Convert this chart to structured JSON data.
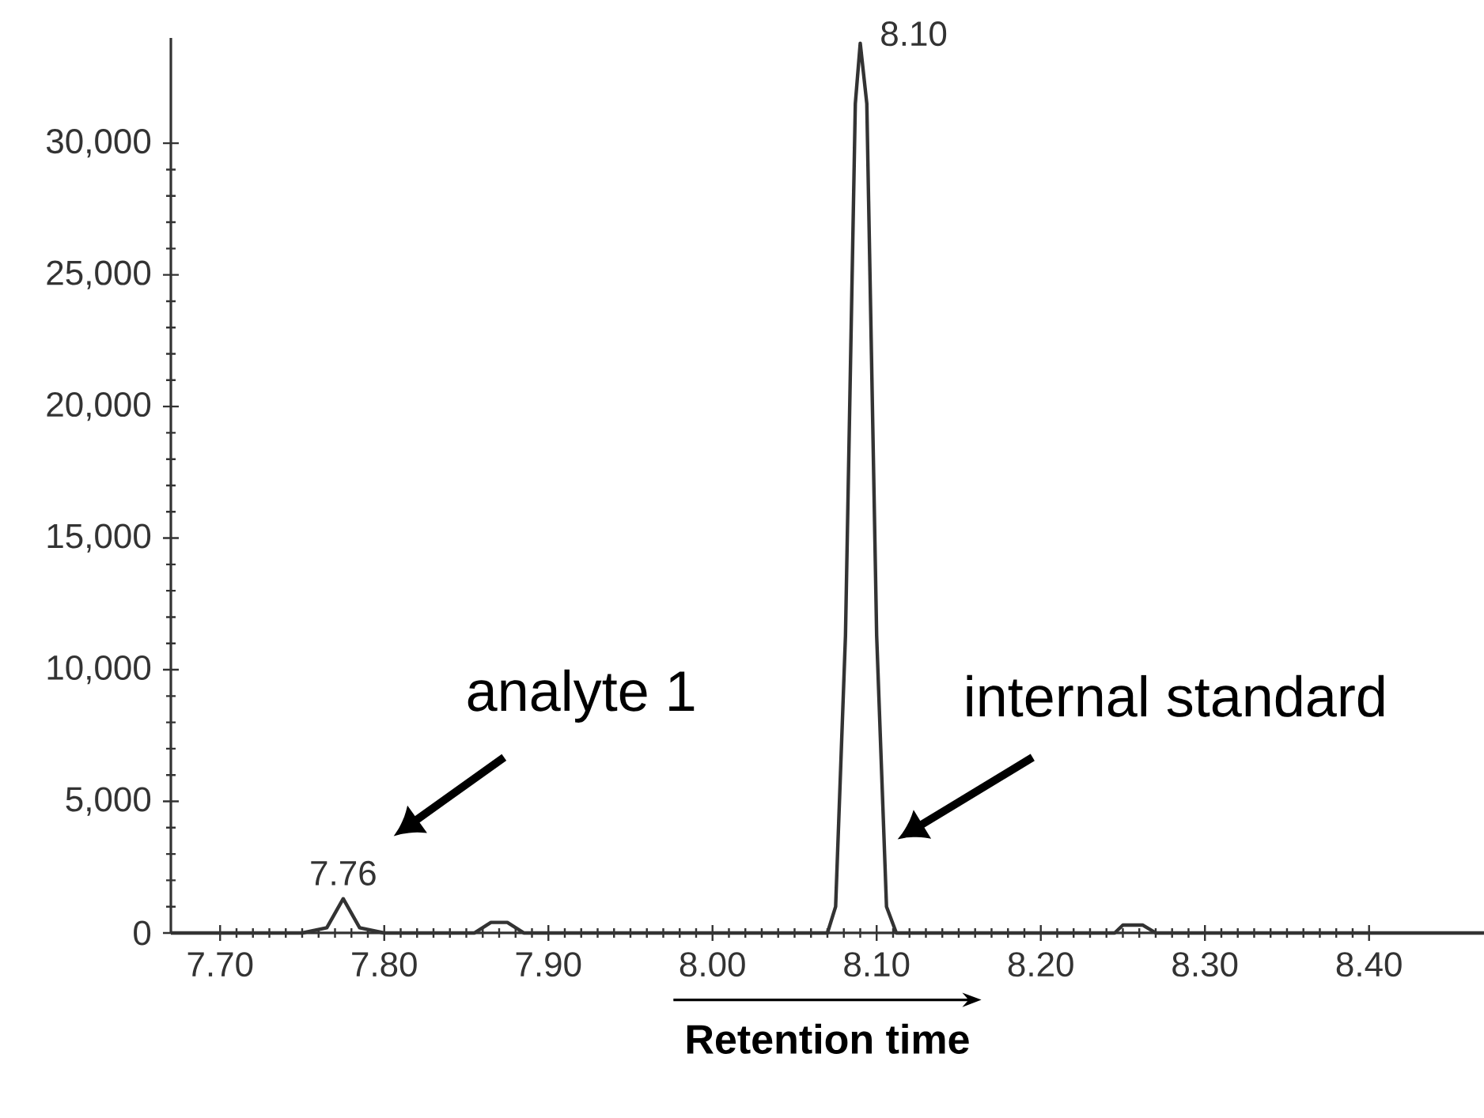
{
  "chart_data": {
    "type": "line",
    "xlabel": "Retention time",
    "x": [
      7.67,
      7.75,
      7.765,
      7.775,
      7.785,
      7.8,
      7.855,
      7.865,
      7.875,
      7.885,
      8.07,
      8.075,
      8.081,
      8.087,
      8.09,
      8.094,
      8.1,
      8.106,
      8.112,
      8.245,
      8.25,
      8.262,
      8.27,
      8.47
    ],
    "series": [
      {
        "color": "#333333",
        "values": [
          0,
          0,
          200,
          1300,
          200,
          0,
          0,
          400,
          400,
          0,
          0,
          1000,
          11300,
          31500,
          33800,
          31500,
          11300,
          1000,
          0,
          0,
          300,
          300,
          0,
          0
        ]
      }
    ],
    "xlim": [
      7.67,
      8.47
    ],
    "xticks": [
      {
        "value": 7.7,
        "label": "7.70"
      },
      {
        "value": 7.8,
        "label": "7.80"
      },
      {
        "value": 7.9,
        "label": "7.90"
      },
      {
        "value": 8.0,
        "label": "8.00"
      },
      {
        "value": 8.1,
        "label": "8.10"
      },
      {
        "value": 8.2,
        "label": "8.20"
      },
      {
        "value": 8.3,
        "label": "8.30"
      },
      {
        "value": 8.4,
        "label": "8.40"
      }
    ],
    "ylim": [
      0,
      34000
    ],
    "yticks": [
      0,
      {
        "value": 5000,
        "label": "5,000"
      },
      {
        "value": 10000,
        "label": "10,000"
      },
      {
        "value": 15000,
        "label": "15,000"
      },
      {
        "value": 20000,
        "label": "20,000"
      },
      {
        "value": 25000,
        "label": "25,000"
      },
      {
        "value": 30000,
        "label": "30,000"
      }
    ],
    "annotations": [
      {
        "text": "7.76",
        "x": 7.775,
        "y": 1300
      },
      {
        "text": "8.10",
        "x": 8.09,
        "y": 33800
      },
      "analyte 1",
      "internal standard"
    ],
    "grid": false,
    "marker": "none",
    "line_style": "solid"
  }
}
